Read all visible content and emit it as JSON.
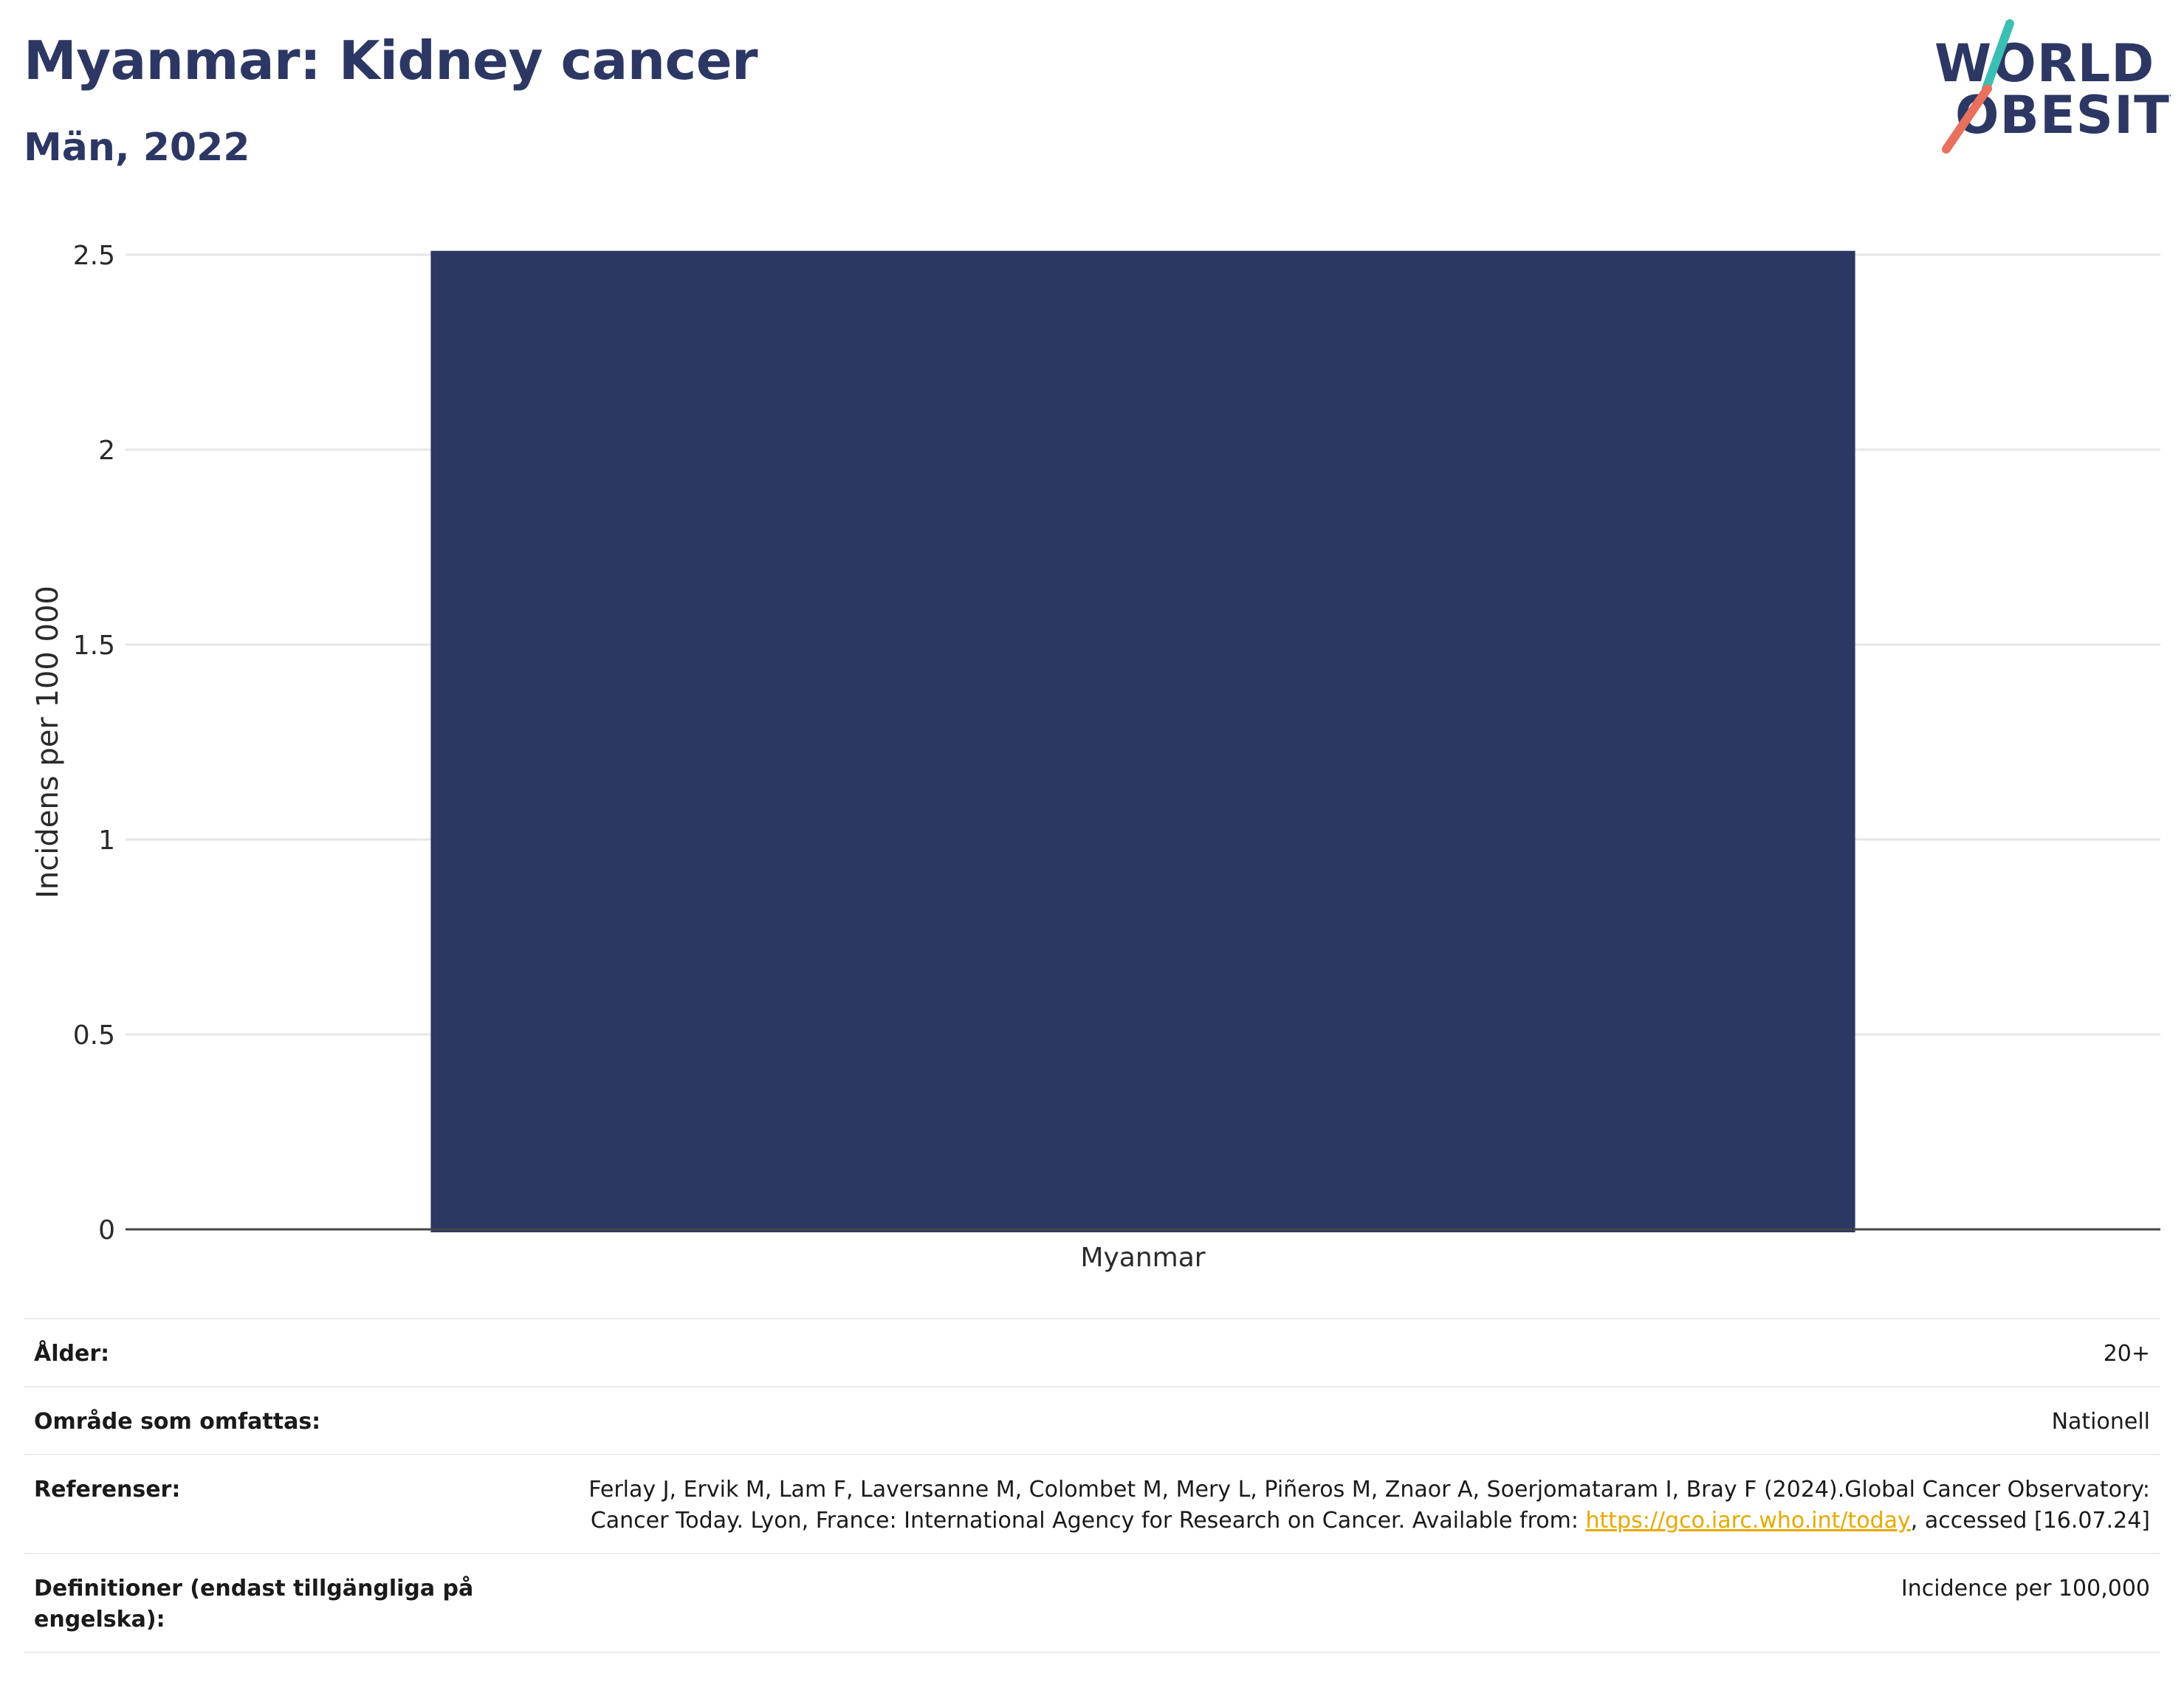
{
  "header": {
    "title": "Myanmar: Kidney cancer",
    "subtitle": "Män, 2022"
  },
  "logo": {
    "line1": "WORLD",
    "line2": "OBESITY",
    "colors": {
      "text": "#2c3764",
      "teal": "#3bbfb5",
      "coral": "#e8705c"
    }
  },
  "chart_data": {
    "type": "bar",
    "categories": [
      "Myanmar"
    ],
    "values": [
      2.51
    ],
    "ylabel": "Incidens per 100 000",
    "xlabel": "",
    "ylim": [
      0,
      2.5
    ],
    "yticks": [
      0,
      0.5,
      1,
      1.5,
      2,
      2.5
    ],
    "ytick_labels": [
      "0",
      "0.5",
      "1",
      "1.5",
      "2",
      "2.5"
    ],
    "grid": true,
    "bar_color": "#2c3764"
  },
  "meta": {
    "age_label": "Ålder:",
    "age_value": "20+",
    "area_label": "Område som omfattas:",
    "area_value": "Nationell",
    "refs_label": "Referenser:",
    "refs_text_1": "Ferlay J, Ervik M, Lam F, Laversanne M, Colombet M, Mery L, Piñeros M, Znaor A, Soerjomataram I, Bray F (2024).Global Cancer Observatory: Cancer Today. Lyon, France: International Agency for Research on Cancer. Available from: ",
    "refs_link": "https://gco.iarc.who.int/today",
    "refs_text_2": ", accessed [16.07.24]",
    "defs_label": "Definitioner (endast tillgängliga på engelska):",
    "defs_value": "Incidence per 100,000"
  }
}
